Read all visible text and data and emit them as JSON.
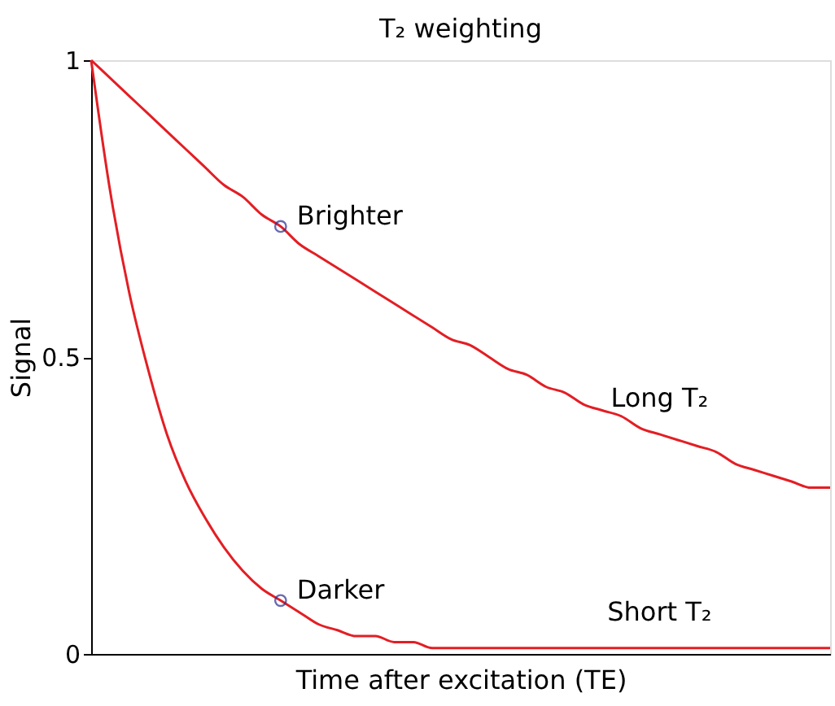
{
  "chart_data": {
    "type": "line",
    "title": "T₂ weighting",
    "xlabel": "Time after excitation (TE)",
    "ylabel": "Signal",
    "categories": [
      null,
      null,
      null,
      null,
      null,
      null,
      null,
      null,
      null,
      null,
      null,
      null,
      null,
      null,
      null,
      null,
      null,
      null,
      null,
      null,
      null,
      null,
      null,
      null,
      null,
      null,
      null,
      null,
      null,
      null,
      null,
      null,
      null,
      null,
      null,
      null,
      null,
      null,
      null,
      null
    ],
    "series": [
      {
        "name": "Long T₂",
        "color": "#e31e24",
        "values": [
          1.0,
          0.97,
          0.94,
          0.91,
          0.88,
          0.85,
          0.82,
          0.79,
          0.77,
          0.74,
          0.72,
          0.69,
          0.67,
          0.65,
          0.63,
          0.61,
          0.59,
          0.57,
          0.55,
          0.53,
          0.52,
          0.5,
          0.48,
          0.47,
          0.45,
          0.44,
          0.42,
          0.41,
          0.4,
          0.38,
          0.37,
          0.36,
          0.35,
          0.34,
          0.32,
          0.31,
          0.3,
          0.29,
          0.28,
          0.28
        ]
      },
      {
        "name": "Short T₂",
        "color": "#e31e24",
        "values": [
          1.0,
          0.78,
          0.61,
          0.48,
          0.37,
          0.29,
          0.23,
          0.18,
          0.14,
          0.11,
          0.09,
          0.07,
          0.05,
          0.04,
          0.03,
          0.03,
          0.02,
          0.02,
          0.01,
          0.01,
          0.01,
          0.01,
          0.01,
          0.01,
          0.01,
          0.01,
          0.01,
          0.01,
          0.01,
          0.01,
          0.01,
          0.01,
          0.01,
          0.01,
          0.01,
          0.01,
          0.01,
          0.01,
          0.01,
          0.01
        ]
      },
      {
        "type": "scatter",
        "marker": "circle",
        "color": "#2b2f8f",
        "values": [
          null,
          null,
          null,
          null,
          null,
          null,
          null,
          null,
          null,
          null,
          0.72,
          null,
          null,
          null,
          null,
          null,
          null,
          null,
          null,
          null,
          null,
          null,
          null,
          null,
          null,
          null,
          null,
          null,
          null,
          null,
          null,
          null,
          null,
          null,
          null,
          null,
          null,
          null,
          null,
          null
        ]
      },
      {
        "type": "scatter",
        "marker": "circle",
        "color": "#2b2f8f",
        "values": [
          null,
          null,
          null,
          null,
          null,
          null,
          null,
          null,
          null,
          null,
          0.09,
          null,
          null,
          null,
          null,
          null,
          null,
          null,
          null,
          null,
          null,
          null,
          null,
          null,
          null,
          null,
          null,
          null,
          null,
          null,
          null,
          null,
          null,
          null,
          null,
          null,
          null,
          null,
          null,
          null
        ]
      }
    ],
    "annotations": [
      "Brighter",
      "Darker"
    ],
    "ylim": [
      0,
      1
    ],
    "yticks": [
      {
        "value": 0,
        "label": "0"
      },
      0.5,
      {
        "value": 1,
        "label": "1"
      }
    ],
    "grid": false,
    "line_style": "solid"
  }
}
